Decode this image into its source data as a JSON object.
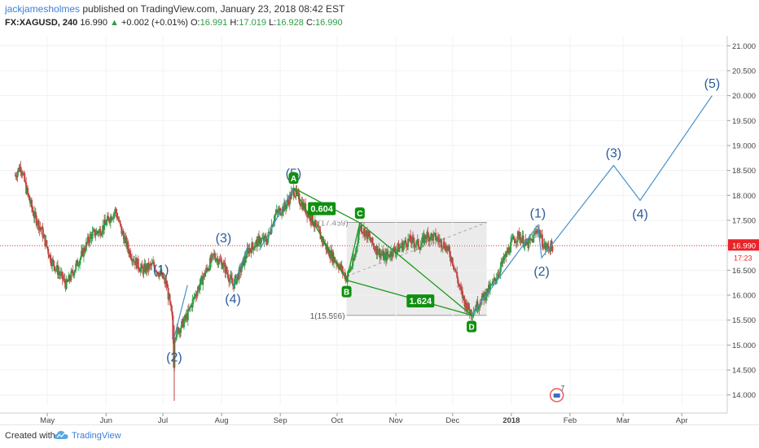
{
  "header": {
    "author": "jackjamesholmes",
    "published_text": " published on TradingView.com, January 23, 2018 08:42 EST",
    "symbol": "FX:XAGUSD, 240",
    "last": "16.990",
    "change_arrow": "▲",
    "change": "+0.002 (+0.01%)",
    "o_label": "O:",
    "o_value": "16.991",
    "h_label": "H:",
    "h_value": "17.019",
    "l_label": "L:",
    "l_value": "16.928",
    "c_label": "C:",
    "c_value": "16.990"
  },
  "footer": {
    "created_with": "Created with",
    "brand": "TradingView"
  },
  "colors": {
    "wave": "#4a90c8",
    "pattern": "#1a9a1a",
    "pattern_label_bg": "#109010",
    "price_line": "#e04040",
    "price_tag": "#e8242a",
    "range_box": "#ebebeb",
    "candle_up": "#2e9c47",
    "candle_down": "#c24343"
  },
  "chart_data": {
    "type": "candlestick",
    "symbol": "XAGUSD",
    "timeframe": "240",
    "ylim": [
      13.8,
      21.2
    ],
    "y_ticks": [
      "14.000",
      "14.500",
      "15.000",
      "15.500",
      "16.000",
      "16.500",
      "17.000",
      "17.500",
      "18.000",
      "18.500",
      "19.000",
      "19.500",
      "20.000",
      "20.500",
      "21.000"
    ],
    "x_ticks": [
      "May",
      "Jun",
      "Jul",
      "Aug",
      "Sep",
      "Oct",
      "Nov",
      "Dec",
      "2018",
      "Feb",
      "Mar",
      "Apr"
    ],
    "price_path": [
      [
        "2017-04-14",
        18.4
      ],
      [
        "2017-04-17",
        18.6
      ],
      [
        "2017-04-20",
        18.1
      ],
      [
        "2017-04-24",
        17.6
      ],
      [
        "2017-04-28",
        17.3
      ],
      [
        "2017-05-03",
        16.7
      ],
      [
        "2017-05-08",
        16.4
      ],
      [
        "2017-05-11",
        16.2
      ],
      [
        "2017-05-15",
        16.5
      ],
      [
        "2017-05-19",
        16.8
      ],
      [
        "2017-05-24",
        17.2
      ],
      [
        "2017-05-29",
        17.3
      ],
      [
        "2017-06-02",
        17.5
      ],
      [
        "2017-06-06",
        17.7
      ],
      [
        "2017-06-09",
        17.3
      ],
      [
        "2017-06-13",
        16.9
      ],
      [
        "2017-06-16",
        16.7
      ],
      [
        "2017-06-20",
        16.5
      ],
      [
        "2017-06-26",
        16.6
      ],
      [
        "2017-06-30",
        16.4
      ],
      [
        "2017-07-03",
        16.2
      ],
      [
        "2017-07-06",
        15.5
      ],
      [
        "2017-07-07",
        14.35
      ],
      [
        "2017-07-07",
        15.2
      ],
      [
        "2017-07-11",
        15.4
      ],
      [
        "2017-07-14",
        15.6
      ],
      [
        "2017-07-18",
        16.0
      ],
      [
        "2017-07-24",
        16.5
      ],
      [
        "2017-07-28",
        16.8
      ],
      [
        "2017-08-02",
        16.6
      ],
      [
        "2017-08-07",
        16.2
      ],
      [
        "2017-08-11",
        16.5
      ],
      [
        "2017-08-15",
        16.9
      ],
      [
        "2017-08-21",
        17.1
      ],
      [
        "2017-08-25",
        17.1
      ],
      [
        "2017-08-29",
        17.6
      ],
      [
        "2017-09-04",
        17.8
      ],
      [
        "2017-09-08",
        18.1
      ],
      [
        "2017-09-13",
        17.8
      ],
      [
        "2017-09-18",
        17.5
      ],
      [
        "2017-09-22",
        17.2
      ],
      [
        "2017-09-26",
        16.9
      ],
      [
        "2017-10-02",
        16.6
      ],
      [
        "2017-10-06",
        16.35
      ],
      [
        "2017-10-10",
        16.7
      ],
      [
        "2017-10-13",
        17.4
      ],
      [
        "2017-10-17",
        17.2
      ],
      [
        "2017-10-20",
        17.0
      ],
      [
        "2017-10-26",
        16.75
      ],
      [
        "2017-10-31",
        16.9
      ],
      [
        "2017-11-03",
        16.95
      ],
      [
        "2017-11-08",
        17.1
      ],
      [
        "2017-11-14",
        17.0
      ],
      [
        "2017-11-17",
        17.2
      ],
      [
        "2017-11-22",
        17.15
      ],
      [
        "2017-11-27",
        17.0
      ],
      [
        "2017-12-01",
        16.7
      ],
      [
        "2017-12-05",
        16.1
      ],
      [
        "2017-12-08",
        15.8
      ],
      [
        "2017-12-11",
        15.65
      ],
      [
        "2017-12-14",
        15.8
      ],
      [
        "2017-12-18",
        16.0
      ],
      [
        "2017-12-22",
        16.2
      ],
      [
        "2017-12-28",
        16.7
      ],
      [
        "2018-01-02",
        17.1
      ],
      [
        "2018-01-05",
        17.2
      ],
      [
        "2018-01-09",
        17.0
      ],
      [
        "2018-01-12",
        17.1
      ],
      [
        "2018-01-15",
        17.35
      ],
      [
        "2018-01-17",
        17.1
      ],
      [
        "2018-01-19",
        16.95
      ],
      [
        "2018-01-23",
        16.99
      ]
    ],
    "last_price": "16.990",
    "price_tag_time": "17:23",
    "elliott_labels_history": [
      {
        "label": "(1)",
        "date": "2017-06-30",
        "price": 16.2
      },
      {
        "label": "(2)",
        "date": "2017-07-07",
        "price": 15.1
      },
      {
        "label": "(3)",
        "date": "2017-08-02",
        "price": 16.9
      },
      {
        "label": "(4)",
        "date": "2017-08-07",
        "price": 16.2
      },
      {
        "label": "(5)",
        "date": "2017-09-08",
        "price": 18.1
      }
    ],
    "wave_lines_history": [
      [
        [
          "2017-07-07",
          15.15
        ],
        [
          "2017-07-14",
          16.2
        ]
      ],
      [
        [
          "2017-08-07",
          16.15
        ],
        [
          "2017-08-15",
          17.0
        ]
      ],
      [
        [
          "2017-08-21",
          16.9
        ],
        [
          "2017-09-08",
          18.15
        ]
      ]
    ],
    "abcd_pattern": {
      "points": [
        {
          "label": "A",
          "date": "2017-09-08",
          "price": 18.15
        },
        {
          "label": "B",
          "date": "2017-10-06",
          "price": 16.3
        },
        {
          "label": "C",
          "date": "2017-10-13",
          "price": 17.45
        },
        {
          "label": "D",
          "date": "2017-12-11",
          "price": 15.6
        }
      ],
      "ratio_ab_c": "0.604",
      "ratio_bc_d": "1.624"
    },
    "fib_box": {
      "x_start": "2017-10-06",
      "x_end": "2017-12-19",
      "top_price": 17.459,
      "bottom_price": 15.596,
      "top_label": "(17.459)",
      "bottom_label": "1(15.596)"
    },
    "projection": {
      "points": [
        {
          "label": "",
          "date": "2017-12-11",
          "price": 15.6
        },
        {
          "label": "(1)",
          "date": "2018-01-15",
          "price": 17.4
        },
        {
          "label": "(2)",
          "date": "2018-01-17",
          "price": 16.75
        },
        {
          "label": "(3)",
          "date": "2018-02-24",
          "price": 18.6
        },
        {
          "label": "(4)",
          "date": "2018-03-10",
          "price": 17.9
        },
        {
          "label": "(5)",
          "date": "2018-04-17",
          "price": 20.0
        }
      ]
    },
    "event_badge_count": "7"
  }
}
